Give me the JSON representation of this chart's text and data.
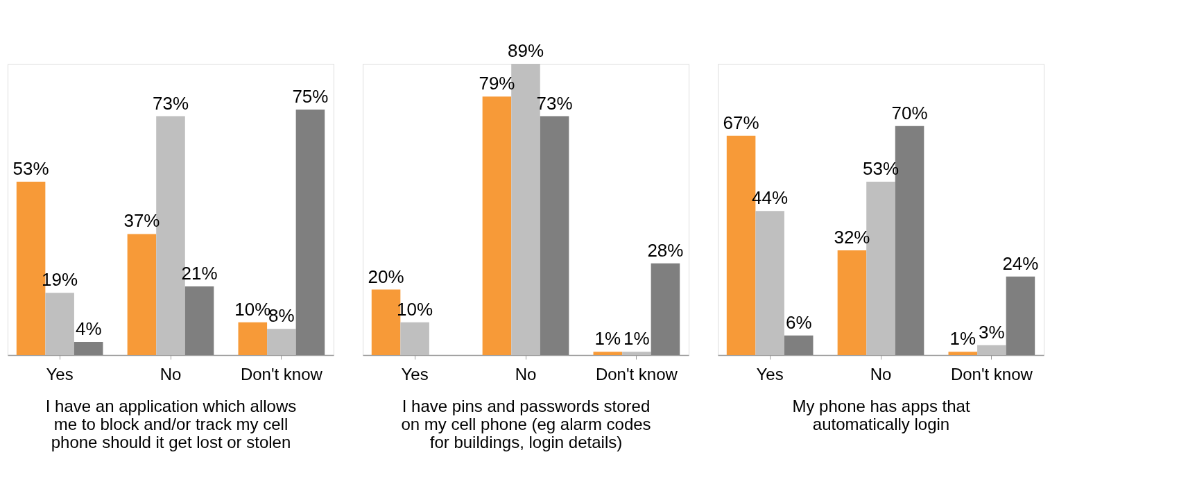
{
  "chart_data": [
    {
      "type": "bar",
      "categories": [
        "Yes",
        "No",
        "Don't know"
      ],
      "xlabel": "I have an application which allows me to block and/or track my cell phone should it get lost or stolen",
      "series": [
        {
          "color": "#f79a38",
          "values": [
            53,
            37,
            10
          ],
          "value_labels": [
            "53%",
            "37%",
            "10%"
          ]
        },
        {
          "color": "#bfbfbf",
          "values": [
            19,
            73,
            8
          ],
          "value_labels": [
            "19%",
            "73%",
            "8%"
          ]
        },
        {
          "color": "#7f7f7f",
          "values": [
            4,
            21,
            75
          ],
          "value_labels": [
            "4%",
            "21%",
            "75%"
          ]
        }
      ]
    },
    {
      "type": "bar",
      "categories": [
        "Yes",
        "No",
        "Don't know"
      ],
      "xlabel": "I have pins and passwords stored on my cell phone (eg alarm codes for buildings, login details)",
      "series": [
        {
          "color": "#f79a38",
          "values": [
            20,
            79,
            1
          ],
          "value_labels": [
            "20%",
            "79%",
            "1%"
          ]
        },
        {
          "color": "#bfbfbf",
          "values": [
            10,
            89,
            1
          ],
          "value_labels": [
            "10%",
            "89%",
            "1%"
          ]
        },
        {
          "color": "#7f7f7f",
          "values": [
            null,
            73,
            28
          ],
          "value_labels": [
            null,
            "73%",
            "28%"
          ]
        }
      ]
    },
    {
      "type": "bar",
      "categories": [
        "Yes",
        "No",
        "Don't know"
      ],
      "xlabel": "My phone has apps that automatically login",
      "series": [
        {
          "color": "#f79a38",
          "values": [
            67,
            32,
            1
          ],
          "value_labels": [
            "67%",
            "32%",
            "1%"
          ]
        },
        {
          "color": "#bfbfbf",
          "values": [
            44,
            53,
            3
          ],
          "value_labels": [
            "44%",
            "53%",
            "3%"
          ]
        },
        {
          "color": "#7f7f7f",
          "values": [
            6,
            70,
            24
          ],
          "value_labels": [
            "6%",
            "70%",
            "24%"
          ]
        }
      ]
    }
  ]
}
